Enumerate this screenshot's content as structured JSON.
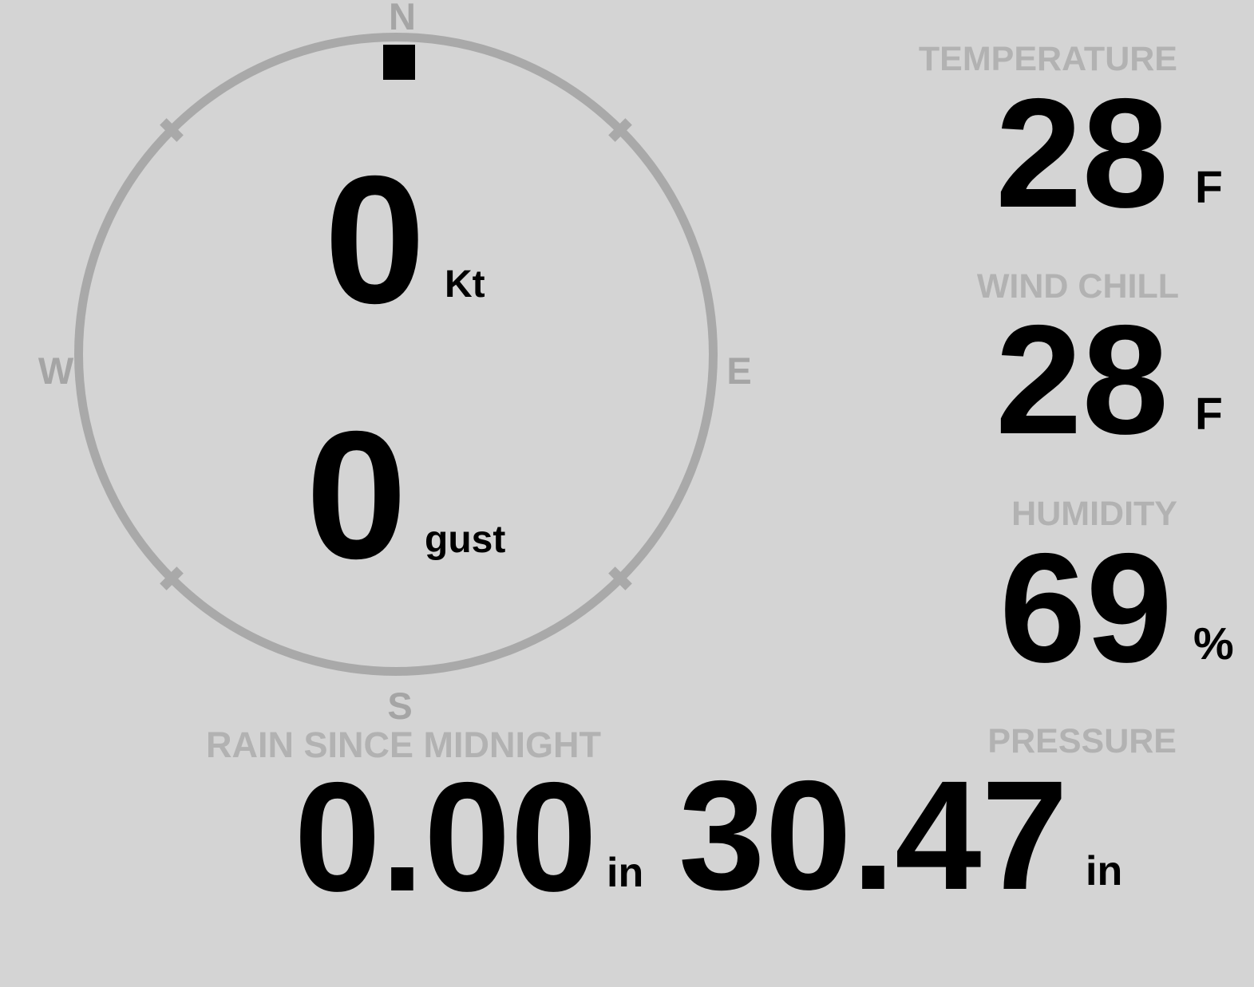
{
  "colors": {
    "background": "#d4d4d4",
    "ring": "#a9a9a9",
    "compass_letters": "#a5a5a5",
    "stat_labels": "#b2b2b2",
    "values": "#000000",
    "direction_marker": "#000000"
  },
  "compass": {
    "north_label": "N",
    "east_label": "E",
    "south_label": "S",
    "west_label": "W",
    "wind_direction": "N",
    "wind_speed": {
      "value": "0",
      "unit": "Kt"
    },
    "wind_gust": {
      "value": "0",
      "unit": "gust"
    }
  },
  "stats": {
    "temperature": {
      "label": "TEMPERATURE",
      "value": "28",
      "unit": "F"
    },
    "wind_chill": {
      "label": "WIND CHILL",
      "value": "28",
      "unit": "F"
    },
    "humidity": {
      "label": "HUMIDITY",
      "value": "69",
      "unit": "%"
    },
    "pressure": {
      "label": "PRESSURE",
      "value": "30.47",
      "unit": "in"
    },
    "rain_since_midnight": {
      "label": "RAIN SINCE MIDNIGHT",
      "value": "0.00",
      "unit": "in"
    }
  }
}
